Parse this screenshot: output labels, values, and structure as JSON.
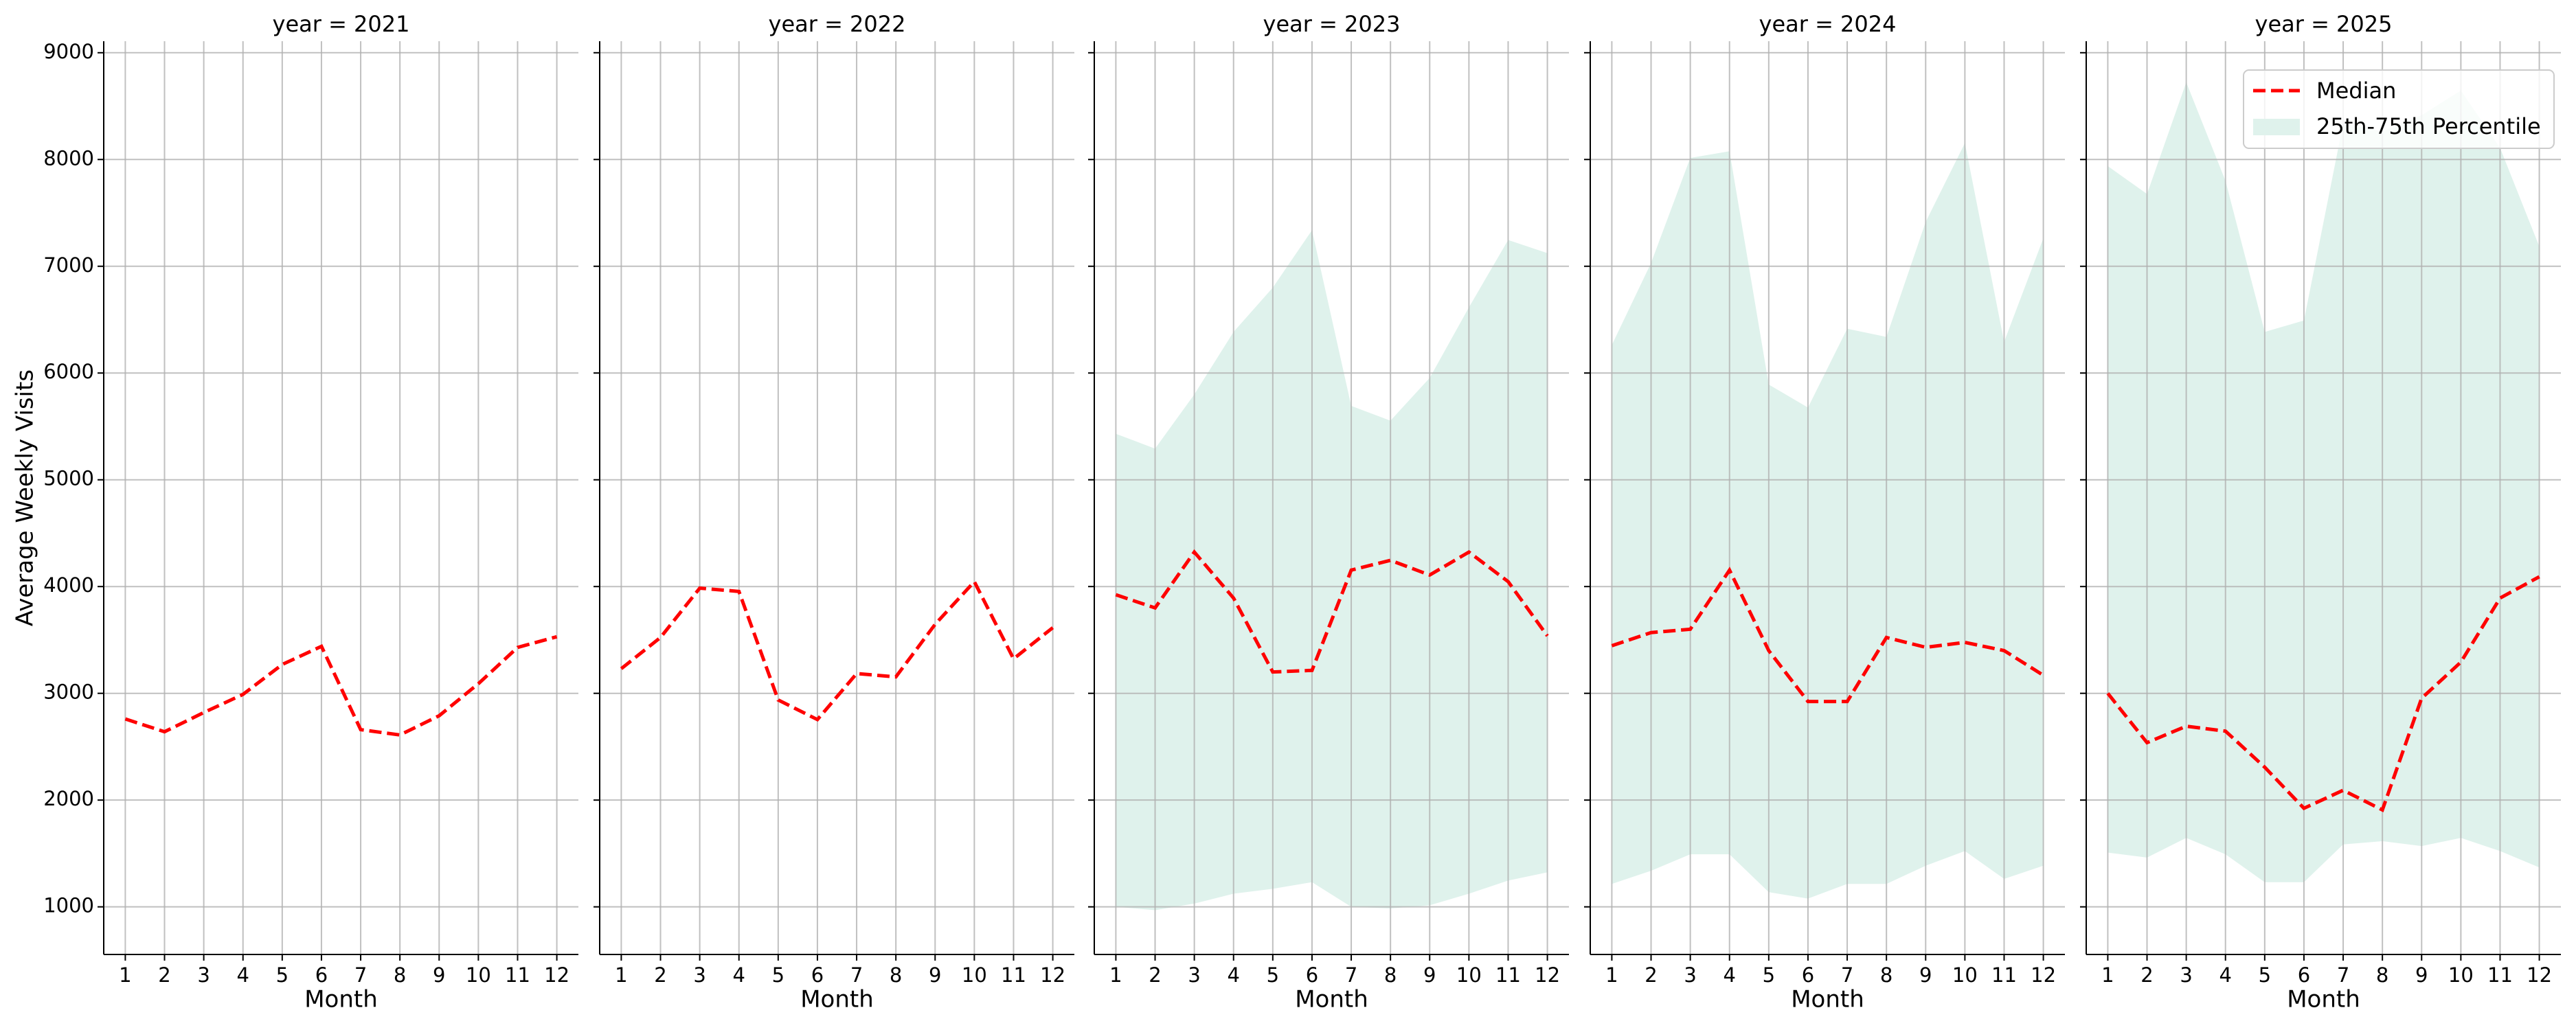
{
  "chart_data": [
    {
      "type": "line",
      "title": "year = 2021",
      "x_label": "Month",
      "y_label": "Average Weekly Visits",
      "x": [
        1,
        2,
        3,
        4,
        5,
        6,
        7,
        8,
        9,
        10,
        11,
        12
      ],
      "xlim": [
        0.45,
        12.55
      ],
      "xticks": [
        1,
        2,
        3,
        4,
        5,
        6,
        7,
        8,
        9,
        10,
        11,
        12
      ],
      "ylim": [
        554,
        9108
      ],
      "yticks": [
        1000,
        2000,
        3000,
        4000,
        5000,
        6000,
        7000,
        8000,
        9000
      ],
      "grid": true,
      "series": [
        {
          "color": "#ff0000",
          "values": [
            2760,
            2640,
            2820,
            2990,
            3270,
            3440,
            2660,
            2610,
            2790,
            3090,
            3430,
            3530
          ]
        }
      ]
    },
    {
      "type": "line",
      "title": "year = 2022",
      "x_label": "Month",
      "x": [
        1,
        2,
        3,
        4,
        5,
        6,
        7,
        8,
        9,
        10,
        11,
        12
      ],
      "xlim": [
        0.45,
        12.55
      ],
      "xticks": [
        1,
        2,
        3,
        4,
        5,
        6,
        7,
        8,
        9,
        10,
        11,
        12
      ],
      "ylim": [
        554,
        9108
      ],
      "yticks": [
        1000,
        2000,
        3000,
        4000,
        5000,
        6000,
        7000,
        8000,
        9000
      ],
      "grid": true,
      "series": [
        {
          "color": "#ff0000",
          "values": [
            3231,
            3523,
            3985,
            3954,
            2938,
            2754,
            3185,
            3154,
            3646,
            4046,
            3323,
            3615
          ]
        }
      ]
    },
    {
      "type": "line",
      "title": "year = 2023",
      "x_label": "Month",
      "x": [
        1,
        2,
        3,
        4,
        5,
        6,
        7,
        8,
        9,
        10,
        11,
        12
      ],
      "xlim": [
        0.45,
        12.55
      ],
      "xticks": [
        1,
        2,
        3,
        4,
        5,
        6,
        7,
        8,
        9,
        10,
        11,
        12
      ],
      "ylim": [
        554,
        9108
      ],
      "yticks": [
        1000,
        2000,
        3000,
        4000,
        5000,
        6000,
        7000,
        8000,
        9000
      ],
      "grid": true,
      "series": [
        {
          "color": "#ff0000",
          "values": [
            3923,
            3800,
            4323,
            3892,
            3200,
            3215,
            4154,
            4246,
            4108,
            4323,
            4046,
            3538
          ]
        }
      ],
      "band": {
        "color": "#dff2ec",
        "lower": [
          1000,
          969,
          1031,
          1123,
          1169,
          1231,
          1000,
          985,
          1015,
          1123,
          1246,
          1323
        ],
        "upper": [
          5431,
          5292,
          5800,
          6385,
          6800,
          7338,
          5692,
          5554,
          5954,
          6615,
          7246,
          7123
        ]
      }
    },
    {
      "type": "line",
      "title": "year = 2024",
      "x_label": "Month",
      "x": [
        1,
        2,
        3,
        4,
        5,
        6,
        7,
        8,
        9,
        10,
        11,
        12
      ],
      "xlim": [
        0.45,
        12.55
      ],
      "xticks": [
        1,
        2,
        3,
        4,
        5,
        6,
        7,
        8,
        9,
        10,
        11,
        12
      ],
      "ylim": [
        554,
        9108
      ],
      "yticks": [
        1000,
        2000,
        3000,
        4000,
        5000,
        6000,
        7000,
        8000,
        9000
      ],
      "grid": true,
      "series": [
        {
          "color": "#ff0000",
          "values": [
            3446,
            3569,
            3600,
            4154,
            3400,
            2923,
            2923,
            3523,
            3431,
            3477,
            3400,
            3169
          ]
        }
      ],
      "band": {
        "color": "#dff2ec",
        "lower": [
          1215,
          1338,
          1492,
          1492,
          1138,
          1077,
          1215,
          1215,
          1385,
          1523,
          1262,
          1385
        ],
        "upper": [
          6262,
          7031,
          8015,
          8077,
          5892,
          5677,
          6415,
          6338,
          7415,
          8154,
          6292,
          7262
        ]
      }
    },
    {
      "type": "line",
      "title": "year = 2025",
      "x_label": "Month",
      "legend": "upper right",
      "x": [
        1,
        2,
        3,
        4,
        5,
        6,
        7,
        8,
        9,
        10,
        11,
        12
      ],
      "xlim": [
        0.45,
        12.55
      ],
      "xticks": [
        1,
        2,
        3,
        4,
        5,
        6,
        7,
        8,
        9,
        10,
        11,
        12
      ],
      "ylim": [
        554,
        9108
      ],
      "yticks": [
        1000,
        2000,
        3000,
        4000,
        5000,
        6000,
        7000,
        8000,
        9000
      ],
      "grid": true,
      "series": [
        {
          "name": "Median",
          "color": "#ff0000",
          "values": [
            3000,
            2538,
            2692,
            2646,
            2308,
            1923,
            2092,
            1908,
            2954,
            3292,
            3892,
            4092
          ]
        }
      ],
      "band": {
        "name": "25th-75th Percentile",
        "color": "#dff2ec",
        "lower": [
          1508,
          1462,
          1646,
          1492,
          1231,
          1231,
          1585,
          1615,
          1569,
          1646,
          1523,
          1369
        ],
        "upper": [
          7938,
          7677,
          8723,
          7800,
          6385,
          6492,
          8338,
          8262,
          8415,
          8646,
          8108,
          7185
        ]
      }
    }
  ]
}
